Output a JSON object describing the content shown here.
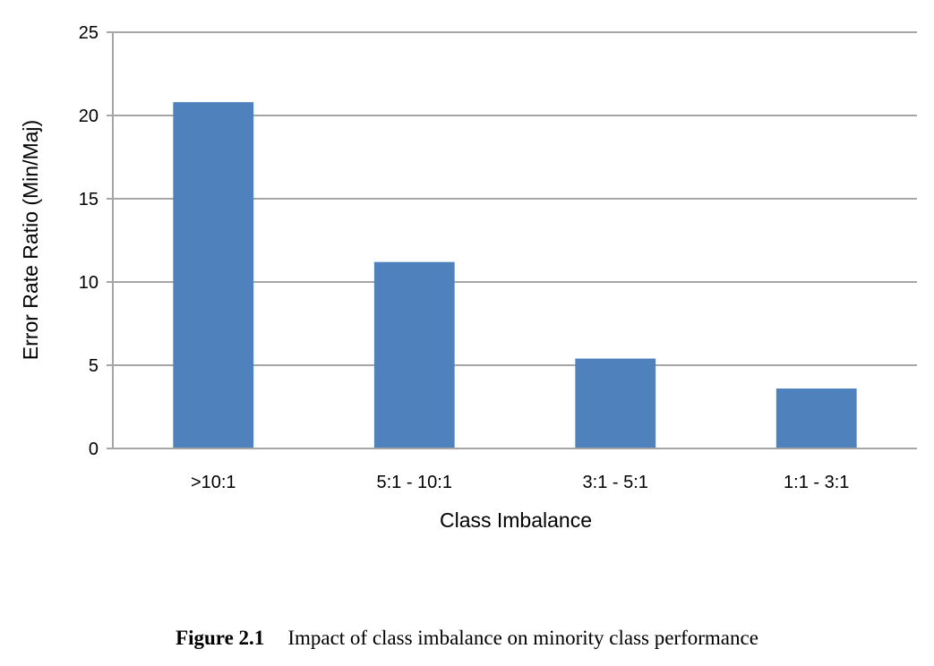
{
  "chart_data": {
    "type": "bar",
    "categories": [
      ">10:1",
      "5:1 - 10:1",
      "3:1 - 5:1",
      "1:1 - 3:1"
    ],
    "values": [
      20.8,
      11.2,
      5.4,
      3.6
    ],
    "xlabel": "Class Imbalance",
    "ylabel": "Error  Rate Ratio (Min/Maj)",
    "ylim": [
      0,
      25
    ],
    "yticks": [
      0,
      5,
      10,
      15,
      20,
      25
    ],
    "grid": true,
    "legend": "none",
    "bar_color": "#4f81bd",
    "grid_color": "#a6a6a6"
  },
  "caption": {
    "label": "Figure 2.1",
    "text": "Impact of class imbalance on minority class performance"
  }
}
